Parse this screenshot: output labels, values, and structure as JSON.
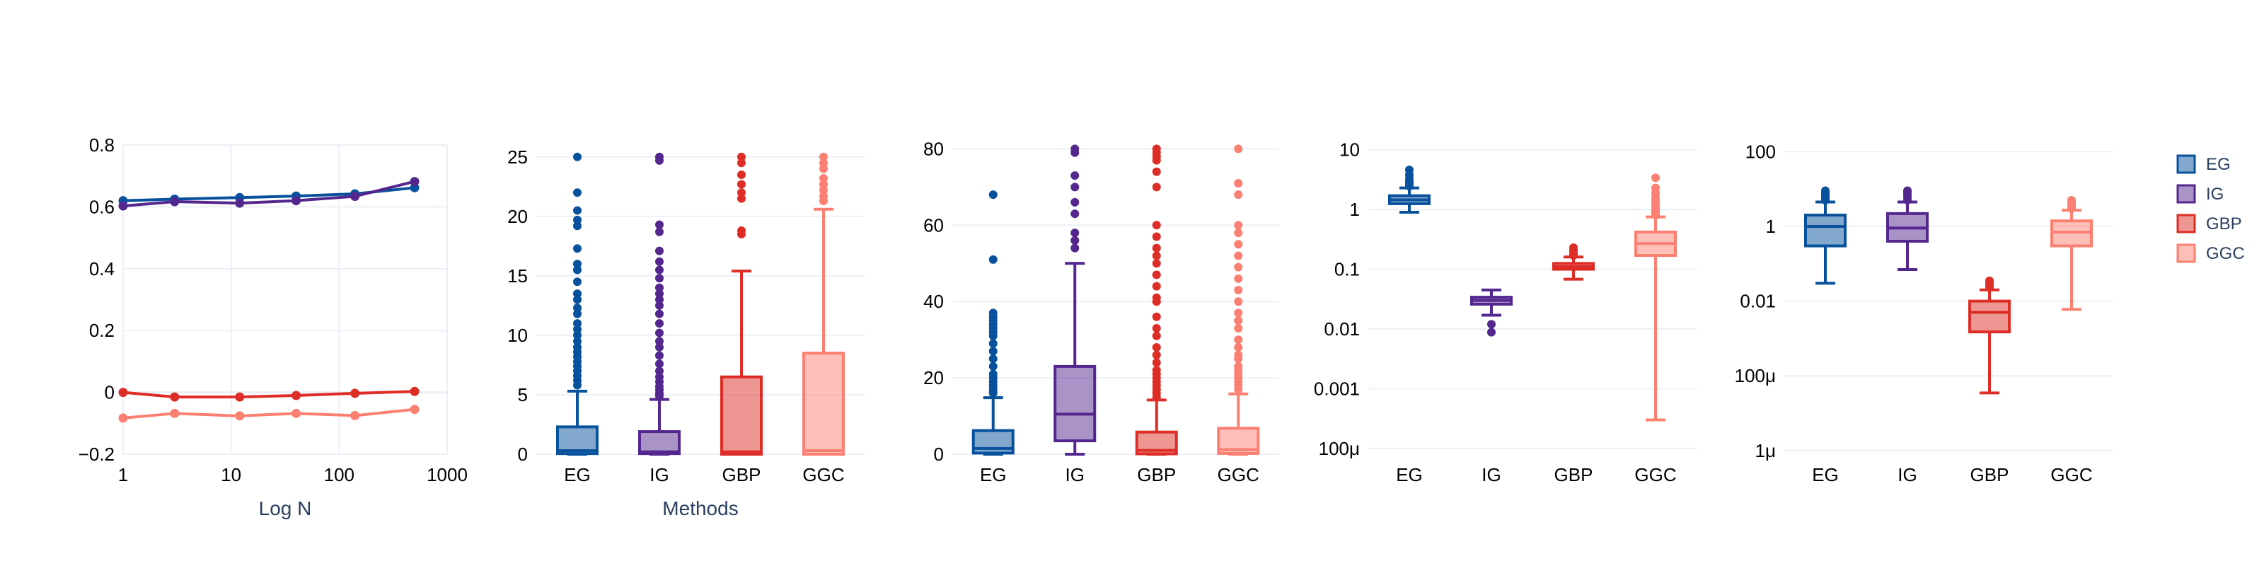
{
  "chart_data": [
    {
      "type": "line",
      "xscale": "log",
      "xlim": [
        1,
        1000
      ],
      "ylim": [
        -0.2,
        0.8
      ],
      "xticks": [
        1,
        10,
        100,
        1000
      ],
      "xtick_labels": [
        "1",
        "10",
        "100",
        "1000"
      ],
      "yticks": [
        -0.2,
        0,
        0.2,
        0.4,
        0.6,
        0.8
      ],
      "ytick_labels": [
        "−0.2",
        "0",
        "0.2",
        "0.4",
        "0.6",
        "0.8"
      ],
      "xlabel": "Log N",
      "ylabel": "",
      "grid": true,
      "x": [
        1,
        3,
        12,
        40,
        140,
        500
      ],
      "series": [
        {
          "name": "EG",
          "color": "#08519c",
          "values": [
            0.62,
            0.625,
            0.63,
            0.635,
            0.642,
            0.662
          ]
        },
        {
          "name": "IG",
          "color": "#54278f",
          "values": [
            0.603,
            0.617,
            0.612,
            0.62,
            0.634,
            0.682
          ]
        },
        {
          "name": "GBP",
          "color": "#de2d26",
          "values": [
            0.0,
            -0.015,
            -0.015,
            -0.01,
            -0.003,
            0.003
          ]
        },
        {
          "name": "GGC",
          "color": "#fb8072",
          "values": [
            -0.083,
            -0.068,
            -0.076,
            -0.068,
            -0.075,
            -0.055
          ]
        }
      ]
    },
    {
      "type": "box",
      "yscale": "linear",
      "ylim": [
        0,
        26
      ],
      "yticks": [
        0,
        5,
        10,
        15,
        20,
        25
      ],
      "ytick_labels": [
        "0",
        "5",
        "10",
        "15",
        "20",
        "25"
      ],
      "xlabel": "Methods",
      "grid": true,
      "categories": [
        "EG",
        "IG",
        "GBP",
        "GGC"
      ],
      "boxes": [
        {
          "name": "EG",
          "q1": 0.05,
          "median": 0.3,
          "q3": 2.3,
          "lower": 0,
          "upper": 5.3,
          "outliers": [
            25,
            22,
            20.5,
            19.7,
            19.2,
            17.3,
            16,
            15.5,
            14.5,
            13.5,
            13,
            12.3,
            11.8,
            11,
            10.5,
            10,
            9.5,
            9,
            8.6,
            8.2,
            7.8,
            7.4,
            7,
            6.6,
            6.2,
            5.8
          ]
        },
        {
          "name": "IG",
          "q1": 0.05,
          "median": 0.2,
          "q3": 1.9,
          "lower": 0,
          "upper": 4.6,
          "outliers": [
            25,
            24.7,
            19.3,
            18.7,
            17.1,
            16.2,
            15.5,
            14.8,
            14,
            13.5,
            13,
            12.5,
            11.8,
            11,
            10.2,
            9.5,
            9,
            8.3,
            7.6,
            7,
            6.5,
            6.1,
            5.7,
            5.4,
            5.1,
            4.9
          ]
        },
        {
          "name": "GBP",
          "q1": 0,
          "median": 0.2,
          "q3": 6.5,
          "lower": 0,
          "upper": 15.4,
          "outliers": [
            25,
            24.5,
            23.5,
            22.7,
            22,
            21.5,
            18.8,
            18.5
          ]
        },
        {
          "name": "GGC",
          "q1": 0,
          "median": 0.3,
          "q3": 8.5,
          "lower": 0,
          "upper": 20.6,
          "outliers": [
            25,
            24.5,
            24,
            23.2,
            22.7,
            22.2,
            21.7,
            21.3
          ]
        }
      ]
    },
    {
      "type": "box",
      "yscale": "linear",
      "ylim": [
        0,
        81
      ],
      "yticks": [
        0,
        20,
        40,
        60,
        80
      ],
      "ytick_labels": [
        "0",
        "20",
        "40",
        "60",
        "80"
      ],
      "xlabel": "",
      "grid": true,
      "categories": [
        "EG",
        "IG",
        "GBP",
        "GGC"
      ],
      "boxes": [
        {
          "name": "EG",
          "q1": 0.3,
          "median": 1.5,
          "q3": 6.2,
          "lower": 0,
          "upper": 14.8,
          "outliers": [
            68,
            51,
            37,
            36,
            35,
            34,
            33,
            32,
            31,
            29,
            27,
            25,
            23,
            21,
            20,
            19,
            18,
            17,
            16.5,
            16
          ]
        },
        {
          "name": "IG",
          "q1": 3.5,
          "median": 10.5,
          "q3": 23,
          "lower": 0,
          "upper": 50,
          "outliers": [
            80,
            79,
            73,
            70,
            66,
            63,
            58,
            56,
            54
          ]
        },
        {
          "name": "GBP",
          "q1": 0.1,
          "median": 1,
          "q3": 5.8,
          "lower": 0,
          "upper": 14.2,
          "outliers": [
            80,
            79,
            78,
            77,
            74,
            70,
            60,
            57,
            54,
            52,
            50,
            47,
            44,
            41,
            40,
            36,
            33,
            31,
            28,
            26,
            24,
            22,
            21,
            20,
            19,
            18,
            17,
            16,
            15
          ]
        },
        {
          "name": "GGC",
          "q1": 0.2,
          "median": 1.2,
          "q3": 6.8,
          "lower": 0,
          "upper": 15.8,
          "outliers": [
            80,
            71,
            68,
            60,
            58,
            55,
            52,
            49,
            46,
            43,
            40,
            37,
            35,
            33,
            30,
            28,
            26,
            25,
            23,
            22,
            21,
            20,
            19,
            18,
            17
          ]
        }
      ]
    },
    {
      "type": "box",
      "yscale": "log",
      "ylim": [
        8e-05,
        12
      ],
      "yticks": [
        0.0001,
        0.001,
        0.01,
        0.1,
        1,
        10
      ],
      "ytick_labels": [
        "100μ",
        "0.001",
        "0.01",
        "0.1",
        "1",
        "10"
      ],
      "xlabel": "",
      "grid": true,
      "categories": [
        "EG",
        "IG",
        "GBP",
        "GGC"
      ],
      "boxes": [
        {
          "name": "EG",
          "q1": 1.25,
          "median": 1.45,
          "q3": 1.7,
          "lower": 0.9,
          "upper": 2.3,
          "outliers": [
            4.6,
            3.8,
            3.3,
            3.0,
            2.8,
            2.6,
            2.45
          ]
        },
        {
          "name": "IG",
          "q1": 0.026,
          "median": 0.03,
          "q3": 0.034,
          "lower": 0.017,
          "upper": 0.045,
          "outliers": [
            0.012,
            0.0088
          ]
        },
        {
          "name": "GBP",
          "q1": 0.1,
          "median": 0.11,
          "q3": 0.125,
          "lower": 0.068,
          "upper": 0.16,
          "outliers": [
            0.23,
            0.21,
            0.195,
            0.18,
            0.17
          ]
        },
        {
          "name": "GGC",
          "q1": 0.17,
          "median": 0.27,
          "q3": 0.42,
          "lower": 0.0003,
          "upper": 0.75,
          "outliers": [
            3.4,
            2.3,
            1.9,
            1.6,
            1.45,
            1.3,
            1.2,
            1.1,
            1.0,
            0.95,
            0.9,
            0.85,
            0.8
          ]
        }
      ]
    },
    {
      "type": "box",
      "yscale": "log",
      "ylim": [
        8e-07,
        150
      ],
      "yticks": [
        1e-06,
        0.0001,
        0.01,
        1,
        100
      ],
      "ytick_labels": [
        "1μ",
        "100μ",
        "0.01",
        "1",
        "100"
      ],
      "xlabel": "",
      "grid": true,
      "categories": [
        "EG",
        "IG",
        "GBP",
        "GGC"
      ],
      "boxes": [
        {
          "name": "EG",
          "q1": 0.3,
          "median": 1.0,
          "q3": 2.0,
          "lower": 0.03,
          "upper": 4.5,
          "outliers": [
            9,
            8,
            7,
            6.5,
            6,
            5.5,
            5
          ]
        },
        {
          "name": "IG",
          "q1": 0.4,
          "median": 0.9,
          "q3": 2.2,
          "lower": 0.07,
          "upper": 4.5,
          "outliers": [
            9,
            8,
            7,
            6,
            5
          ]
        },
        {
          "name": "GBP",
          "q1": 0.0015,
          "median": 0.005,
          "q3": 0.01,
          "lower": 3.5e-05,
          "upper": 0.02,
          "outliers": [
            0.035,
            0.03,
            0.027,
            0.025,
            0.023
          ]
        },
        {
          "name": "GGC",
          "q1": 0.3,
          "median": 0.7,
          "q3": 1.4,
          "lower": 0.006,
          "upper": 2.7,
          "outliers": [
            5,
            4.5,
            4,
            3.6,
            3.3,
            3
          ]
        }
      ]
    }
  ],
  "legend": {
    "placement": "right",
    "items": [
      {
        "name": "EG",
        "color": "#08519c"
      },
      {
        "name": "IG",
        "color": "#54278f"
      },
      {
        "name": "GBP",
        "color": "#de2d26"
      },
      {
        "name": "GGC",
        "color": "#fb8072"
      }
    ]
  }
}
